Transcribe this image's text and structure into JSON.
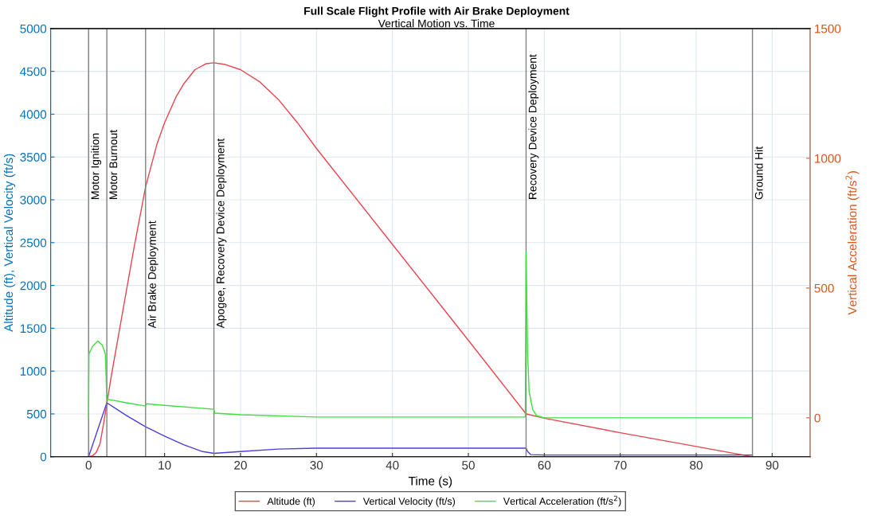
{
  "chart_data": {
    "type": "line",
    "title": "Full Scale Flight Profile with Air Brake Deployment",
    "subtitle": "Vertical Motion vs. Time",
    "xlabel": "Time (s)",
    "ylabel": "Altitude (ft), Vertical Velocity (ft/s)",
    "y2label": "Vertical Acceleration (ft/s$^{2}$)",
    "xlim": [
      -5,
      95
    ],
    "xticks": [
      0,
      10,
      20,
      30,
      40,
      50,
      60,
      70,
      80,
      90
    ],
    "ylim": [
      0,
      5000
    ],
    "yticks": [
      0,
      500,
      1000,
      1500,
      2000,
      2500,
      3000,
      3500,
      4000,
      4500,
      5000
    ],
    "y2lim": [
      -150,
      1500
    ],
    "y2ticks": [
      0,
      500,
      1000,
      1500
    ],
    "grid": true,
    "legend": "bottom",
    "series": [
      {
        "name": "Altitude (ft)",
        "color": "#e8454f",
        "x": [
          0,
          0.5,
          1,
          1.5,
          2,
          2.4,
          3,
          4,
          5,
          6,
          7.5,
          9,
          10,
          11.5,
          12.5,
          14,
          15.5,
          16.5,
          18,
          20,
          22.5,
          25,
          27.5,
          30,
          40,
          50,
          57.6,
          60,
          70,
          80,
          87.4
        ],
        "values": [
          0,
          10,
          50,
          150,
          400,
          620,
          950,
          1450,
          1950,
          2450,
          3150,
          3650,
          3900,
          4200,
          4350,
          4520,
          4590,
          4600,
          4580,
          4520,
          4380,
          4170,
          3900,
          3600,
          2480,
          1360,
          500,
          450,
          280,
          120,
          0
        ]
      },
      {
        "name": "Vertical Velocity (ft/s)",
        "color": "#4b3fd8",
        "x": [
          0,
          2.4,
          5,
          7.5,
          10,
          12.5,
          15,
          16.5,
          20,
          25,
          30,
          40,
          57.6,
          57.8,
          58.2,
          60,
          87.4
        ],
        "values": [
          0,
          630,
          480,
          350,
          240,
          140,
          60,
          40,
          60,
          90,
          100,
          100,
          100,
          60,
          25,
          20,
          20
        ]
      },
      {
        "name": "Vertical Acceleration (ft/s$^{2}$)",
        "color": "#3ee03e",
        "axis": "y2",
        "x": [
          0,
          0.05,
          0.5,
          1.2,
          1.8,
          2.2,
          2.4,
          5,
          7.5,
          7.6,
          10,
          16.5,
          16.6,
          20,
          30,
          57.5,
          57.6,
          57.8,
          58,
          58.5,
          59,
          60,
          87.4
        ],
        "values": [
          0,
          246,
          275,
          296,
          280,
          246,
          72,
          58,
          45,
          54,
          48,
          33,
          18,
          12,
          3,
          3,
          636,
          250,
          100,
          30,
          8,
          0,
          0
        ]
      }
    ],
    "ref_lines": [
      {
        "axis": "x",
        "value": 0,
        "label": "Motor Ignition",
        "color": "#808080"
      },
      {
        "axis": "x",
        "value": 2.4,
        "label": "Motor Burnout",
        "color": "#808080"
      },
      {
        "axis": "x",
        "value": 7.5,
        "label": "Air Brake Deployment",
        "color": "#808080"
      },
      {
        "axis": "x",
        "value": 16.5,
        "label": "Apogee, Recovery Device Deployment",
        "color": "#808080"
      },
      {
        "axis": "x",
        "value": 57.6,
        "label": "Recovery Device Deployment",
        "color": "#808080"
      },
      {
        "axis": "x",
        "value": 87.4,
        "label": "Ground Hit",
        "color": "#808080"
      }
    ]
  }
}
